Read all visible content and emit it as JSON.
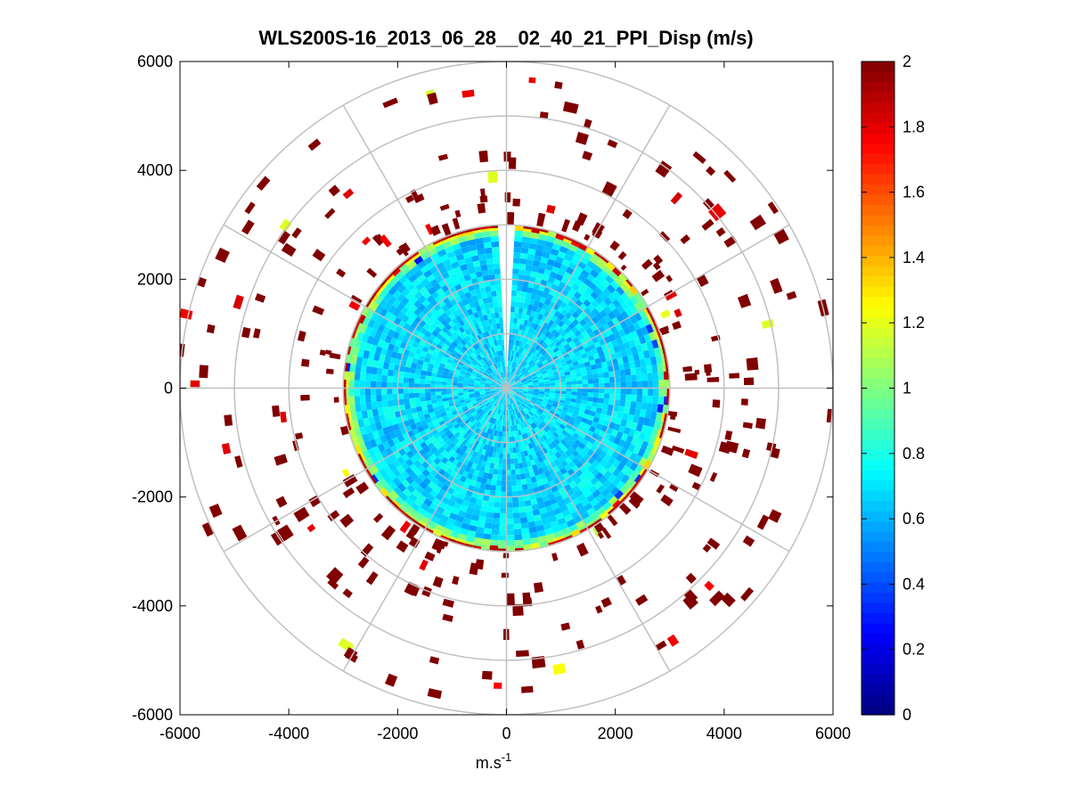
{
  "chart_data": {
    "type": "heatmap",
    "subtype": "polar PPI scan",
    "title": "WLS200S-16_2013_06_28__02_40_21_PPI_Disp (m/s)",
    "xlabel": "m.s",
    "xlabel_exponent": "-1",
    "ylabel": "",
    "xlim": [
      -6000,
      6000
    ],
    "ylim": [
      -6000,
      6000
    ],
    "xticks": [
      -6000,
      -4000,
      -2000,
      0,
      2000,
      4000,
      6000
    ],
    "yticks": [
      6000,
      4000,
      2000,
      0,
      -2000,
      -4000,
      -6000
    ],
    "xtick_labels": [
      "-6000",
      "-4000",
      "-2000",
      "0",
      "2000",
      "4000",
      "6000"
    ],
    "ytick_labels": [
      "6000",
      "4000",
      "2000",
      "0",
      "-2000",
      "-4000",
      "-6000"
    ],
    "range_rings_m": [
      1000,
      2000,
      3000,
      4000,
      5000,
      6000
    ],
    "spoke_angles_deg": [
      0,
      30,
      60,
      90,
      120,
      150,
      180,
      210,
      240,
      270,
      300,
      330
    ],
    "dense_region_max_range_m": 2950,
    "missing_sector_deg": [
      -4,
      3
    ],
    "colorbar": {
      "min": 0,
      "max": 2,
      "ticks": [
        0,
        0.2,
        0.4,
        0.6,
        0.8,
        1,
        1.2,
        1.4,
        1.6,
        1.8,
        2
      ],
      "tick_labels": [
        "0",
        "0.2",
        "0.4",
        "0.6",
        "0.8",
        "1",
        "1.2",
        "1.4",
        "1.6",
        "1.8",
        "2"
      ],
      "colormap": "jet"
    },
    "grid": true,
    "legend": "none"
  }
}
